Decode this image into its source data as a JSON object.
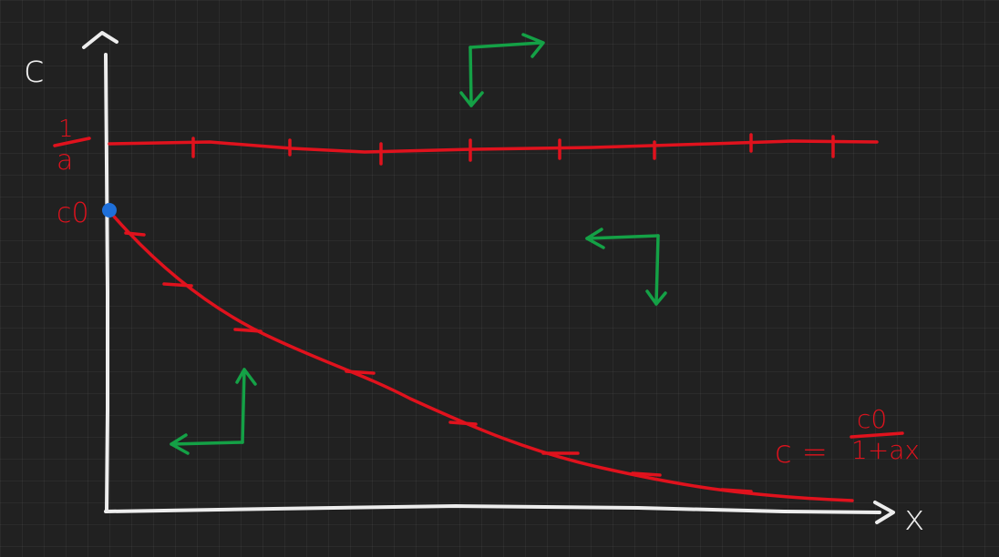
{
  "labels": {
    "c_axis": "c",
    "x_axis": "x",
    "one_over_a_numerator": "1",
    "one_over_a_denominator": "a",
    "c0": "c0",
    "formula_lhs": "c =",
    "formula_numerator": "c0",
    "formula_denominator": "1+ax"
  },
  "colors": {
    "background": "#212121",
    "axes": "#ededed",
    "curve": "#e0121d",
    "arrows": "#14a146",
    "point": "#1e6fd9"
  },
  "curve": {
    "expression": "c = c0/(1+ax)"
  }
}
